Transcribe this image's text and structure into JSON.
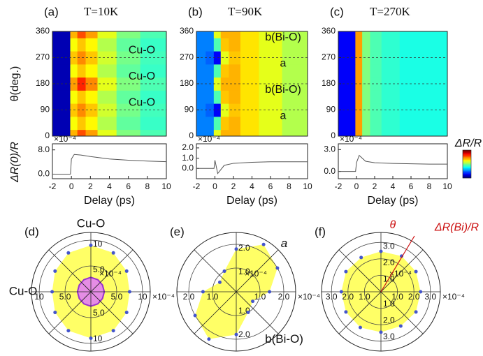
{
  "chart_data": [
    {
      "type": "heatmap",
      "label": "(a)",
      "title": "T=10K",
      "ylabel": "θ(deg.)",
      "x": [
        -1.5,
        -0.5,
        0.25,
        1,
        2,
        3.5,
        6,
        8.5
      ],
      "y": [
        0,
        45,
        90,
        135,
        180,
        225,
        270,
        315,
        360
      ],
      "z": [
        [
          0.05,
          0.05,
          0.7,
          0.8,
          0.72,
          0.6,
          0.5,
          0.45
        ],
        [
          0.05,
          0.05,
          0.62,
          0.68,
          0.63,
          0.55,
          0.47,
          0.43
        ],
        [
          0.05,
          0.05,
          0.68,
          0.74,
          0.68,
          0.58,
          0.49,
          0.44
        ],
        [
          0.05,
          0.05,
          0.62,
          0.68,
          0.63,
          0.55,
          0.47,
          0.43
        ],
        [
          0.05,
          0.05,
          0.72,
          0.84,
          0.74,
          0.6,
          0.5,
          0.45
        ],
        [
          0.05,
          0.05,
          0.62,
          0.68,
          0.63,
          0.55,
          0.47,
          0.43
        ],
        [
          0.05,
          0.05,
          0.68,
          0.74,
          0.68,
          0.58,
          0.49,
          0.44
        ],
        [
          0.05,
          0.05,
          0.62,
          0.68,
          0.63,
          0.55,
          0.47,
          0.43
        ],
        [
          0.05,
          0.05,
          0.7,
          0.8,
          0.72,
          0.6,
          0.5,
          0.45
        ]
      ],
      "xlim": [
        -2,
        10
      ],
      "ylim": [
        0,
        360
      ],
      "yticks": [
        0,
        90,
        180,
        270,
        360
      ],
      "grid": true,
      "annotations": [
        {
          "text": "Cu-O",
          "y": 270
        },
        {
          "text": "Cu-O",
          "y": 180
        },
        {
          "text": "Cu-O",
          "y": 90
        }
      ]
    },
    {
      "type": "heatmap",
      "label": "(b)",
      "title": "T=90K",
      "x": [
        -1.5,
        -0.5,
        0.25,
        1,
        2,
        3.5,
        6,
        8.5
      ],
      "y": [
        0,
        45,
        90,
        135,
        180,
        225,
        270,
        315,
        360
      ],
      "z": [
        [
          0.25,
          0.25,
          0.6,
          0.7,
          0.7,
          0.65,
          0.6,
          0.55
        ],
        [
          0.25,
          0.25,
          0.45,
          0.68,
          0.7,
          0.65,
          0.6,
          0.55
        ],
        [
          0.25,
          0.22,
          0.12,
          0.6,
          0.68,
          0.65,
          0.6,
          0.55
        ],
        [
          0.25,
          0.25,
          0.45,
          0.68,
          0.7,
          0.65,
          0.6,
          0.55
        ],
        [
          0.25,
          0.25,
          0.6,
          0.7,
          0.7,
          0.65,
          0.6,
          0.55
        ],
        [
          0.25,
          0.25,
          0.45,
          0.68,
          0.7,
          0.65,
          0.6,
          0.55
        ],
        [
          0.25,
          0.22,
          0.12,
          0.6,
          0.68,
          0.65,
          0.6,
          0.55
        ],
        [
          0.25,
          0.25,
          0.45,
          0.68,
          0.7,
          0.65,
          0.6,
          0.55
        ],
        [
          0.25,
          0.25,
          0.6,
          0.7,
          0.7,
          0.65,
          0.6,
          0.55
        ]
      ],
      "xlim": [
        -2,
        10
      ],
      "ylim": [
        0,
        360
      ],
      "yticks": [
        0,
        90,
        180,
        270,
        360
      ],
      "grid": true,
      "annotations": [
        {
          "text": "b(Bi-O)",
          "y": 315
        },
        {
          "text": "a",
          "y": 225
        },
        {
          "text": "b(Bi-O)",
          "y": 135
        },
        {
          "text": "a",
          "y": 45
        }
      ]
    },
    {
      "type": "heatmap",
      "label": "(c)",
      "title": "T=270K",
      "colorbar_label": "ΔR/R",
      "x": [
        -1.5,
        -0.5,
        0.25,
        1,
        2,
        3.5,
        6,
        8.5
      ],
      "y": [
        0,
        45,
        90,
        135,
        180,
        225,
        270,
        315,
        360
      ],
      "z": [
        [
          0.12,
          0.12,
          0.72,
          0.5,
          0.45,
          0.42,
          0.4,
          0.4
        ],
        [
          0.12,
          0.12,
          0.72,
          0.5,
          0.45,
          0.42,
          0.4,
          0.4
        ],
        [
          0.12,
          0.12,
          0.72,
          0.5,
          0.45,
          0.42,
          0.4,
          0.4
        ],
        [
          0.12,
          0.12,
          0.72,
          0.5,
          0.45,
          0.42,
          0.4,
          0.4
        ],
        [
          0.12,
          0.12,
          0.72,
          0.5,
          0.45,
          0.42,
          0.4,
          0.4
        ],
        [
          0.12,
          0.12,
          0.72,
          0.5,
          0.45,
          0.42,
          0.4,
          0.4
        ],
        [
          0.12,
          0.12,
          0.72,
          0.5,
          0.45,
          0.42,
          0.4,
          0.4
        ],
        [
          0.12,
          0.12,
          0.72,
          0.5,
          0.45,
          0.42,
          0.4,
          0.4
        ],
        [
          0.12,
          0.12,
          0.72,
          0.5,
          0.45,
          0.42,
          0.4,
          0.4
        ]
      ],
      "xlim": [
        -2,
        10
      ],
      "ylim": [
        0,
        360
      ],
      "yticks": [
        0,
        90,
        180,
        270,
        360
      ],
      "grid": true,
      "annotations": []
    },
    {
      "type": "line",
      "ylabel": "ΔR(0)/R",
      "xlabel": "Delay (ps)",
      "multiplier": "×10⁻⁴",
      "color": "#555555",
      "x": [
        -2,
        -1,
        -0.1,
        0,
        0.3,
        1,
        2,
        4,
        6,
        8,
        10
      ],
      "values": [
        0,
        0,
        0,
        5,
        6.5,
        6.3,
        5.8,
        5,
        4.6,
        4.3,
        4.1
      ],
      "xlim": [
        -2,
        10
      ],
      "ylim": [
        -1.5,
        10
      ],
      "xticks": [
        -2,
        0,
        2,
        4,
        6,
        8,
        10
      ],
      "yticks": [
        {
          "value": 0,
          "label": "0.0"
        },
        {
          "value": 8,
          "label": "8.0"
        }
      ]
    },
    {
      "type": "line",
      "xlabel": "Delay (ps)",
      "multiplier": "×10⁻⁴",
      "color": "#555555",
      "x": [
        -2,
        -1,
        -0.1,
        0,
        0.3,
        1,
        2,
        4,
        6,
        8,
        10
      ],
      "values": [
        0,
        0,
        0,
        0.8,
        -0.5,
        0.3,
        0.5,
        0.6,
        0.65,
        0.65,
        0.65
      ],
      "xlim": [
        -2,
        10
      ],
      "ylim": [
        -1,
        2.4
      ],
      "xticks": [
        -2,
        0,
        2,
        4,
        6,
        8,
        10
      ],
      "yticks": [
        {
          "value": 0,
          "label": "0.0"
        },
        {
          "value": 1,
          "label": "1.0"
        },
        {
          "value": 2,
          "label": "2.0"
        }
      ]
    },
    {
      "type": "line",
      "xlabel": "Delay (ps)",
      "multiplier": "×10⁻⁴",
      "color": "#555555",
      "x": [
        -2,
        -1,
        -0.1,
        0,
        0.3,
        1,
        2,
        4,
        6,
        8,
        10
      ],
      "values": [
        0,
        0,
        0,
        1.2,
        2.2,
        1.4,
        1.2,
        1.1,
        1.05,
        1,
        1
      ],
      "xlim": [
        -2,
        10
      ],
      "ylim": [
        -1,
        3.8
      ],
      "xticks": [
        -2,
        0,
        2,
        4,
        6,
        8,
        10
      ],
      "yticks": [
        {
          "value": 0,
          "label": "0.0"
        },
        {
          "value": 3,
          "label": "3.0"
        }
      ]
    },
    {
      "type": "polar",
      "label": "(d)",
      "multiplier": "×10⁻⁴",
      "annotations": [
        {
          "text": "Cu-O",
          "theta": 90
        },
        {
          "text": "Cu-O",
          "theta": 180
        }
      ],
      "rlim": [
        0,
        11.5
      ],
      "rticks": [
        {
          "value": 5,
          "label": "5.0"
        },
        10
      ],
      "series": [
        {
          "color": "#ffff66",
          "theta": [
            0,
            30,
            60,
            90,
            120,
            150,
            180,
            210,
            240,
            270,
            300,
            330
          ],
          "values": [
            7.5,
            8,
            8.7,
            9,
            8.7,
            8,
            7.5,
            8,
            8.7,
            9,
            8.7,
            8
          ]
        },
        {
          "color": "#e58de5",
          "theta": [
            0,
            30,
            60,
            90,
            120,
            150,
            180,
            210,
            240,
            270,
            300,
            330
          ],
          "values": [
            2.6,
            2.6,
            2.7,
            2.8,
            2.7,
            2.6,
            2.6,
            2.6,
            2.7,
            2.8,
            2.7,
            2.6
          ]
        }
      ]
    },
    {
      "type": "polar",
      "label": "(e)",
      "multiplier": "×10⁻⁴",
      "annotations": [
        {
          "text": "a",
          "theta": 45
        },
        {
          "text": "b(Bi-O)",
          "theta": 315
        }
      ],
      "rlim": [
        0,
        2.5
      ],
      "rticks": [
        {
          "value": 1,
          "label": "1.0"
        },
        {
          "value": 2,
          "label": "2.0"
        }
      ],
      "series": [
        {
          "color": "#ffff66",
          "theta": [
            0,
            30,
            60,
            90,
            120,
            150,
            180,
            210,
            240,
            270,
            300,
            330
          ],
          "values": [
            1.4,
            2,
            2.3,
            1.8,
            1,
            0.8,
            1.4,
            2,
            2.3,
            1.8,
            1,
            0.8
          ]
        }
      ]
    },
    {
      "type": "polar",
      "label": "(f)",
      "multiplier": "×10⁻⁴",
      "annotations": [
        {
          "text": "θ",
          "theta": 80
        },
        {
          "text": "ΔR(Bi)/R",
          "theta": 60
        }
      ],
      "rlim": [
        0,
        3.6
      ],
      "rticks": [
        {
          "value": 1,
          "label": "1.0"
        },
        {
          "value": 2,
          "label": "2.0"
        },
        {
          "value": 3,
          "label": "3.0"
        }
      ],
      "series": [
        {
          "color": "#ffff66",
          "theta": [
            0,
            30,
            60,
            90,
            120,
            150,
            180,
            210,
            240,
            270,
            300,
            330
          ],
          "values": [
            2.4,
            2.45,
            2.5,
            2.45,
            2.4,
            2.45,
            2.4,
            2.45,
            2.5,
            2.45,
            2.4,
            2.45
          ]
        }
      ]
    }
  ]
}
